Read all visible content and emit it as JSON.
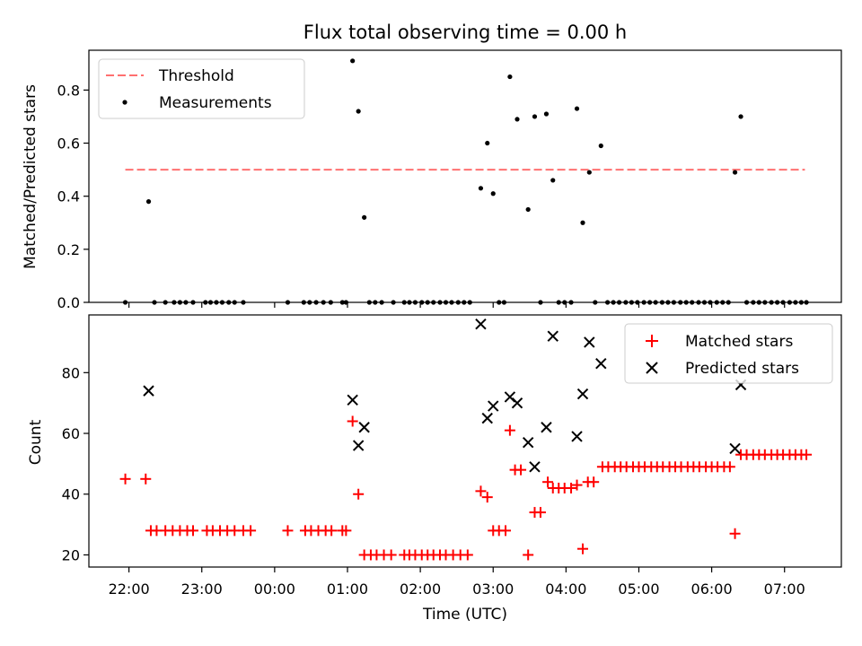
{
  "title": "Flux total observing time = 0.00 h",
  "chart_data": [
    {
      "type": "scatter",
      "ylabel": "Matched/Predicted stars",
      "ylim": [
        0,
        0.95
      ],
      "xlim_hours": [
        -2.55,
        7.78
      ],
      "y_ticks": [
        0.0,
        0.2,
        0.4,
        0.6,
        0.8
      ],
      "y_tick_labels": [
        "0.0",
        "0.2",
        "0.4",
        "0.6",
        "0.8"
      ],
      "legend_position": "upper-left",
      "threshold": {
        "name": "Threshold",
        "value": 0.5,
        "x_range": [
          -2.05,
          7.28
        ],
        "color": "#ff7070"
      },
      "series": [
        {
          "name": "Measurements",
          "color": "#000000",
          "points": [
            [
              -2.05,
              0.0
            ],
            [
              -1.73,
              0.38
            ],
            [
              -1.65,
              0.0
            ],
            [
              -1.5,
              0.0
            ],
            [
              -1.38,
              0.0
            ],
            [
              -1.3,
              0.0
            ],
            [
              -1.22,
              0.0
            ],
            [
              -1.12,
              0.0
            ],
            [
              -0.95,
              0.0
            ],
            [
              -0.88,
              0.0
            ],
            [
              -0.8,
              0.0
            ],
            [
              -0.72,
              0.0
            ],
            [
              -0.63,
              0.0
            ],
            [
              -0.55,
              0.0
            ],
            [
              -0.43,
              0.0
            ],
            [
              0.18,
              0.0
            ],
            [
              0.4,
              0.0
            ],
            [
              0.48,
              0.0
            ],
            [
              0.57,
              0.0
            ],
            [
              0.67,
              0.0
            ],
            [
              0.77,
              0.0
            ],
            [
              0.93,
              0.0
            ],
            [
              0.98,
              0.0
            ],
            [
              1.07,
              0.91
            ],
            [
              1.15,
              0.72
            ],
            [
              1.23,
              0.32
            ],
            [
              1.3,
              0.0
            ],
            [
              1.38,
              0.0
            ],
            [
              1.47,
              0.0
            ],
            [
              1.63,
              0.0
            ],
            [
              1.78,
              0.0
            ],
            [
              1.85,
              0.0
            ],
            [
              1.93,
              0.0
            ],
            [
              2.02,
              0.0
            ],
            [
              2.1,
              0.0
            ],
            [
              2.18,
              0.0
            ],
            [
              2.27,
              0.0
            ],
            [
              2.35,
              0.0
            ],
            [
              2.43,
              0.0
            ],
            [
              2.52,
              0.0
            ],
            [
              2.6,
              0.0
            ],
            [
              2.68,
              0.0
            ],
            [
              2.83,
              0.43
            ],
            [
              2.92,
              0.6
            ],
            [
              3.0,
              0.41
            ],
            [
              3.08,
              0.0
            ],
            [
              3.15,
              0.0
            ],
            [
              3.23,
              0.85
            ],
            [
              3.33,
              0.69
            ],
            [
              3.48,
              0.35
            ],
            [
              3.57,
              0.7
            ],
            [
              3.65,
              0.0
            ],
            [
              3.73,
              0.71
            ],
            [
              3.82,
              0.46
            ],
            [
              3.9,
              0.0
            ],
            [
              3.98,
              0.0
            ],
            [
              4.07,
              0.0
            ],
            [
              4.15,
              0.73
            ],
            [
              4.23,
              0.3
            ],
            [
              4.32,
              0.49
            ],
            [
              4.4,
              0.0
            ],
            [
              4.48,
              0.59
            ],
            [
              4.57,
              0.0
            ],
            [
              4.65,
              0.0
            ],
            [
              4.73,
              0.0
            ],
            [
              4.82,
              0.0
            ],
            [
              4.9,
              0.0
            ],
            [
              4.98,
              0.0
            ],
            [
              5.07,
              0.0
            ],
            [
              5.15,
              0.0
            ],
            [
              5.23,
              0.0
            ],
            [
              5.32,
              0.0
            ],
            [
              5.4,
              0.0
            ],
            [
              5.48,
              0.0
            ],
            [
              5.57,
              0.0
            ],
            [
              5.65,
              0.0
            ],
            [
              5.73,
              0.0
            ],
            [
              5.82,
              0.0
            ],
            [
              5.9,
              0.0
            ],
            [
              5.98,
              0.0
            ],
            [
              6.07,
              0.0
            ],
            [
              6.15,
              0.0
            ],
            [
              6.23,
              0.0
            ],
            [
              6.32,
              0.49
            ],
            [
              6.4,
              0.7
            ],
            [
              6.48,
              0.0
            ],
            [
              6.57,
              0.0
            ],
            [
              6.65,
              0.0
            ],
            [
              6.73,
              0.0
            ],
            [
              6.82,
              0.0
            ],
            [
              6.9,
              0.0
            ],
            [
              6.98,
              0.0
            ],
            [
              7.07,
              0.0
            ],
            [
              7.15,
              0.0
            ],
            [
              7.23,
              0.0
            ],
            [
              7.3,
              0.0
            ]
          ]
        }
      ]
    },
    {
      "type": "scatter",
      "xlabel": "Time (UTC)",
      "ylabel": "Count",
      "ylim": [
        16,
        99
      ],
      "xlim_hours": [
        -2.55,
        7.78
      ],
      "y_ticks": [
        20,
        40,
        60,
        80
      ],
      "y_tick_labels": [
        "20",
        "40",
        "60",
        "80"
      ],
      "x_ticks_hours": [
        -2,
        -1,
        0,
        1,
        2,
        3,
        4,
        5,
        6,
        7
      ],
      "x_tick_labels": [
        "22:00",
        "23:00",
        "00:00",
        "01:00",
        "02:00",
        "03:00",
        "04:00",
        "05:00",
        "06:00",
        "07:00"
      ],
      "legend_position": "upper-right",
      "series": [
        {
          "name": "Matched stars",
          "marker": "plus",
          "color": "#ff0000",
          "points": [
            [
              -2.05,
              45
            ],
            [
              -1.77,
              45
            ],
            [
              -1.7,
              28
            ],
            [
              -1.62,
              28
            ],
            [
              -1.5,
              28
            ],
            [
              -1.4,
              28
            ],
            [
              -1.3,
              28
            ],
            [
              -1.2,
              28
            ],
            [
              -1.12,
              28
            ],
            [
              -0.93,
              28
            ],
            [
              -0.85,
              28
            ],
            [
              -0.75,
              28
            ],
            [
              -0.65,
              28
            ],
            [
              -0.55,
              28
            ],
            [
              -0.43,
              28
            ],
            [
              -0.33,
              28
            ],
            [
              0.18,
              28
            ],
            [
              0.42,
              28
            ],
            [
              0.5,
              28
            ],
            [
              0.6,
              28
            ],
            [
              0.7,
              28
            ],
            [
              0.78,
              28
            ],
            [
              0.93,
              28
            ],
            [
              0.98,
              28
            ],
            [
              1.07,
              64
            ],
            [
              1.15,
              40
            ],
            [
              1.23,
              20
            ],
            [
              1.32,
              20
            ],
            [
              1.4,
              20
            ],
            [
              1.5,
              20
            ],
            [
              1.6,
              20
            ],
            [
              1.78,
              20
            ],
            [
              1.85,
              20
            ],
            [
              1.93,
              20
            ],
            [
              2.02,
              20
            ],
            [
              2.1,
              20
            ],
            [
              2.18,
              20
            ],
            [
              2.27,
              20
            ],
            [
              2.35,
              20
            ],
            [
              2.45,
              20
            ],
            [
              2.55,
              20
            ],
            [
              2.65,
              20
            ],
            [
              2.83,
              41
            ],
            [
              2.92,
              39
            ],
            [
              3.0,
              28
            ],
            [
              3.08,
              28
            ],
            [
              3.17,
              28
            ],
            [
              3.23,
              61
            ],
            [
              3.3,
              48
            ],
            [
              3.38,
              48
            ],
            [
              3.48,
              20
            ],
            [
              3.57,
              34
            ],
            [
              3.65,
              34
            ],
            [
              3.75,
              44
            ],
            [
              3.82,
              42
            ],
            [
              3.9,
              42
            ],
            [
              3.98,
              42
            ],
            [
              4.07,
              42
            ],
            [
              4.15,
              43
            ],
            [
              4.23,
              22
            ],
            [
              4.3,
              44
            ],
            [
              4.38,
              44
            ],
            [
              4.5,
              49
            ],
            [
              4.58,
              49
            ],
            [
              4.67,
              49
            ],
            [
              4.75,
              49
            ],
            [
              4.83,
              49
            ],
            [
              4.92,
              49
            ],
            [
              5.0,
              49
            ],
            [
              5.08,
              49
            ],
            [
              5.17,
              49
            ],
            [
              5.25,
              49
            ],
            [
              5.33,
              49
            ],
            [
              5.42,
              49
            ],
            [
              5.5,
              49
            ],
            [
              5.58,
              49
            ],
            [
              5.67,
              49
            ],
            [
              5.75,
              49
            ],
            [
              5.83,
              49
            ],
            [
              5.92,
              49
            ],
            [
              6.0,
              49
            ],
            [
              6.08,
              49
            ],
            [
              6.17,
              49
            ],
            [
              6.25,
              49
            ],
            [
              6.32,
              27
            ],
            [
              6.4,
              53
            ],
            [
              6.48,
              53
            ],
            [
              6.57,
              53
            ],
            [
              6.65,
              53
            ],
            [
              6.73,
              53
            ],
            [
              6.82,
              53
            ],
            [
              6.9,
              53
            ],
            [
              6.98,
              53
            ],
            [
              7.07,
              53
            ],
            [
              7.15,
              53
            ],
            [
              7.23,
              53
            ],
            [
              7.3,
              53
            ]
          ]
        },
        {
          "name": "Predicted stars",
          "marker": "x",
          "color": "#000000",
          "points": [
            [
              -1.73,
              74
            ],
            [
              1.07,
              71
            ],
            [
              1.15,
              56
            ],
            [
              1.23,
              62
            ],
            [
              2.83,
              96
            ],
            [
              2.92,
              65
            ],
            [
              3.0,
              69
            ],
            [
              3.23,
              72
            ],
            [
              3.33,
              70
            ],
            [
              3.48,
              57
            ],
            [
              3.57,
              49
            ],
            [
              3.73,
              62
            ],
            [
              3.82,
              92
            ],
            [
              4.15,
              59
            ],
            [
              4.23,
              73
            ],
            [
              4.32,
              90
            ],
            [
              4.48,
              83
            ],
            [
              6.32,
              55
            ],
            [
              6.4,
              76
            ]
          ]
        }
      ]
    }
  ]
}
